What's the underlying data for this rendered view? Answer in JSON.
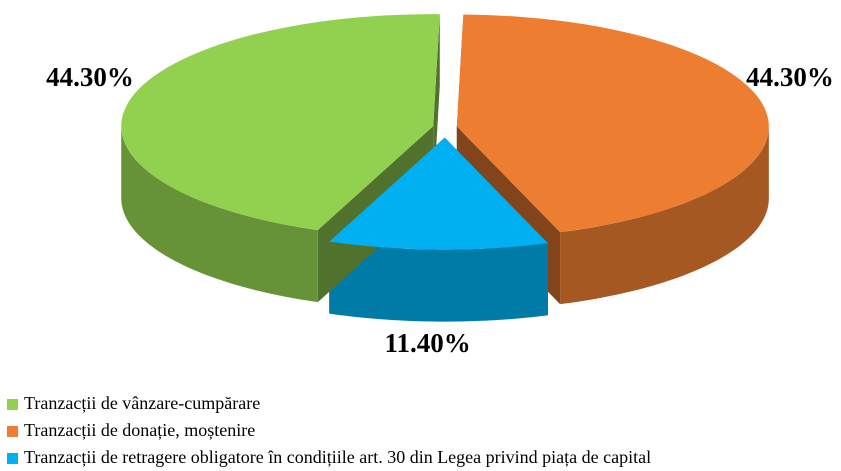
{
  "chart_data": {
    "type": "pie",
    "categories": [
      "Tranzacții  de vânzare-cumpărare",
      "Tranzacții  de donație, moștenire",
      "Tranzacții  de retragere obligatore în condițiile  art. 30 din Legea privind piața de capital"
    ],
    "values": [
      44.3,
      44.3,
      11.4
    ],
    "value_labels": [
      "44.30%",
      "44.30%",
      "11.40%"
    ],
    "colors": [
      "#92d050",
      "#ed7d31",
      "#00b0f0"
    ],
    "legend": "bottom"
  }
}
